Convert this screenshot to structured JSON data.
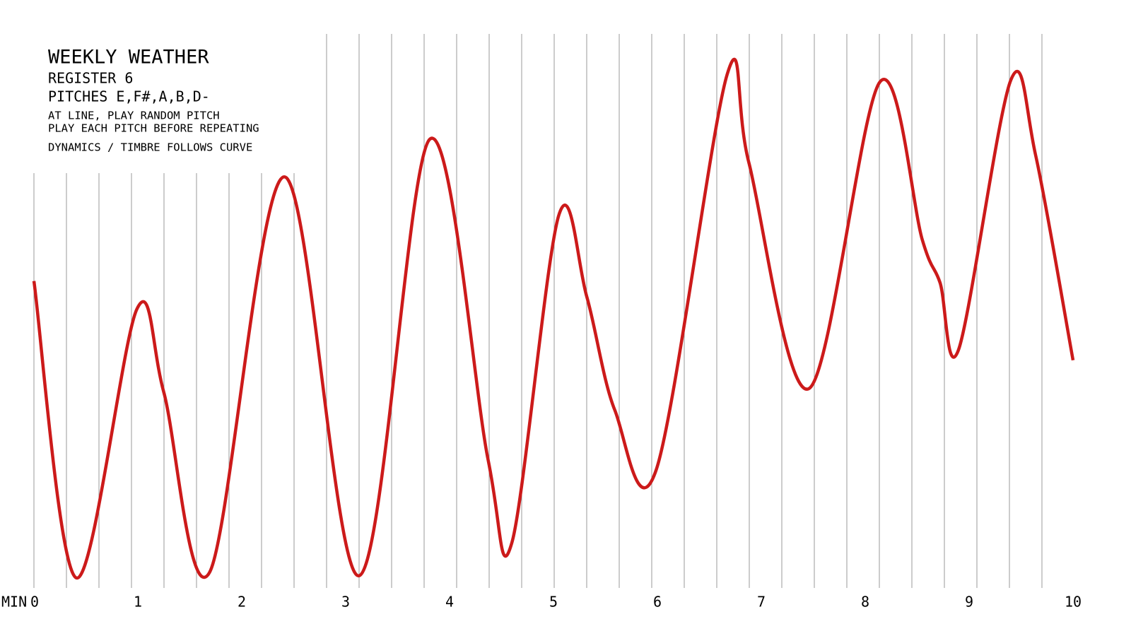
{
  "chart_data": {
    "type": "line",
    "title": "WEEKLY WEATHER",
    "subtitle": "REGISTER 6",
    "annotations": [
      "PITCHES E,F#,A,B,D-",
      "AT LINE, PLAY RANDOM PITCH",
      "PLAY EACH PITCH BEFORE REPEATING",
      "DYNAMICS / TIMBRE FOLLOWS CURVE"
    ],
    "x_label": "MIN",
    "xlim": [
      0,
      10
    ],
    "xticks": [
      0,
      1,
      2,
      3,
      4,
      5,
      6,
      7,
      8,
      9,
      10
    ],
    "ylim": [
      0,
      100
    ],
    "series": [
      {
        "color": "#cc1a1a",
        "x": [
          0,
          0.41,
          0.99,
          1.25,
          1.69,
          2.41,
          3.13,
          3.81,
          4.37,
          4.6,
          5.05,
          5.32,
          5.59,
          5.99,
          6.67,
          6.88,
          7.46,
          8.14,
          8.55,
          8.72,
          8.9,
          9.4,
          9.64,
          10
        ],
        "values": [
          55.4,
          1.8,
          50.3,
          35.3,
          2.8,
          74.2,
          2.2,
          81.0,
          23.2,
          8.2,
          67.2,
          52.6,
          32.1,
          21.4,
          92.6,
          76.8,
          36.0,
          91.3,
          62.8,
          55.1,
          43.1,
          91.6,
          78.1,
          41.1
        ]
      }
    ]
  }
}
